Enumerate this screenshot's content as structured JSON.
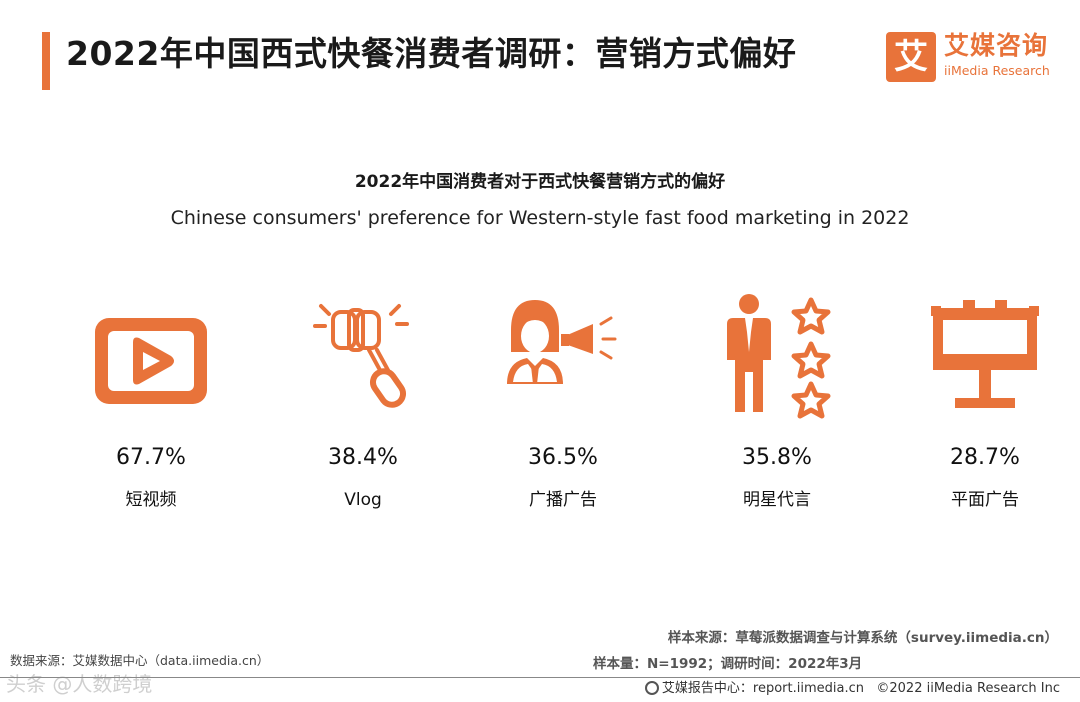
{
  "page": {
    "title": "2022年中国西式快餐消费者调研：营销方式偏好",
    "accent_color": "#e8733a"
  },
  "logo": {
    "mark": "艾",
    "cn": "艾媒咨询",
    "en": "iiMedia Research"
  },
  "chart_data": {
    "type": "bar",
    "title": "2022年中国消费者对于西式快餐营销方式的偏好",
    "subtitle": "Chinese consumers' preference for Western-style fast food marketing in 2022",
    "categories": [
      "短视频",
      "Vlog",
      "广播广告",
      "明星代言",
      "平面广告"
    ],
    "values": [
      67.7,
      38.4,
      36.5,
      35.8,
      28.7
    ],
    "value_labels": [
      "67.7%",
      "38.4%",
      "36.5%",
      "35.8%",
      "28.7%"
    ],
    "icons": [
      "video-play-icon",
      "selfie-stick-icon",
      "megaphone-speaker-icon",
      "celebrity-stars-icon",
      "billboard-icon"
    ],
    "unit": "%"
  },
  "footer": {
    "data_source": "数据来源：艾媒数据中心（data.iimedia.cn）",
    "sample_source": "样本来源：草莓派数据调查与计算系统（survey.iimedia.cn）",
    "sample_size": "样本量：N=1992；调研时间：2022年3月",
    "report_center": "艾媒报告中心：report.iimedia.cn",
    "copyright": "©2022 iiMedia Research Inc",
    "watermark": "头条 @人数跨境"
  }
}
